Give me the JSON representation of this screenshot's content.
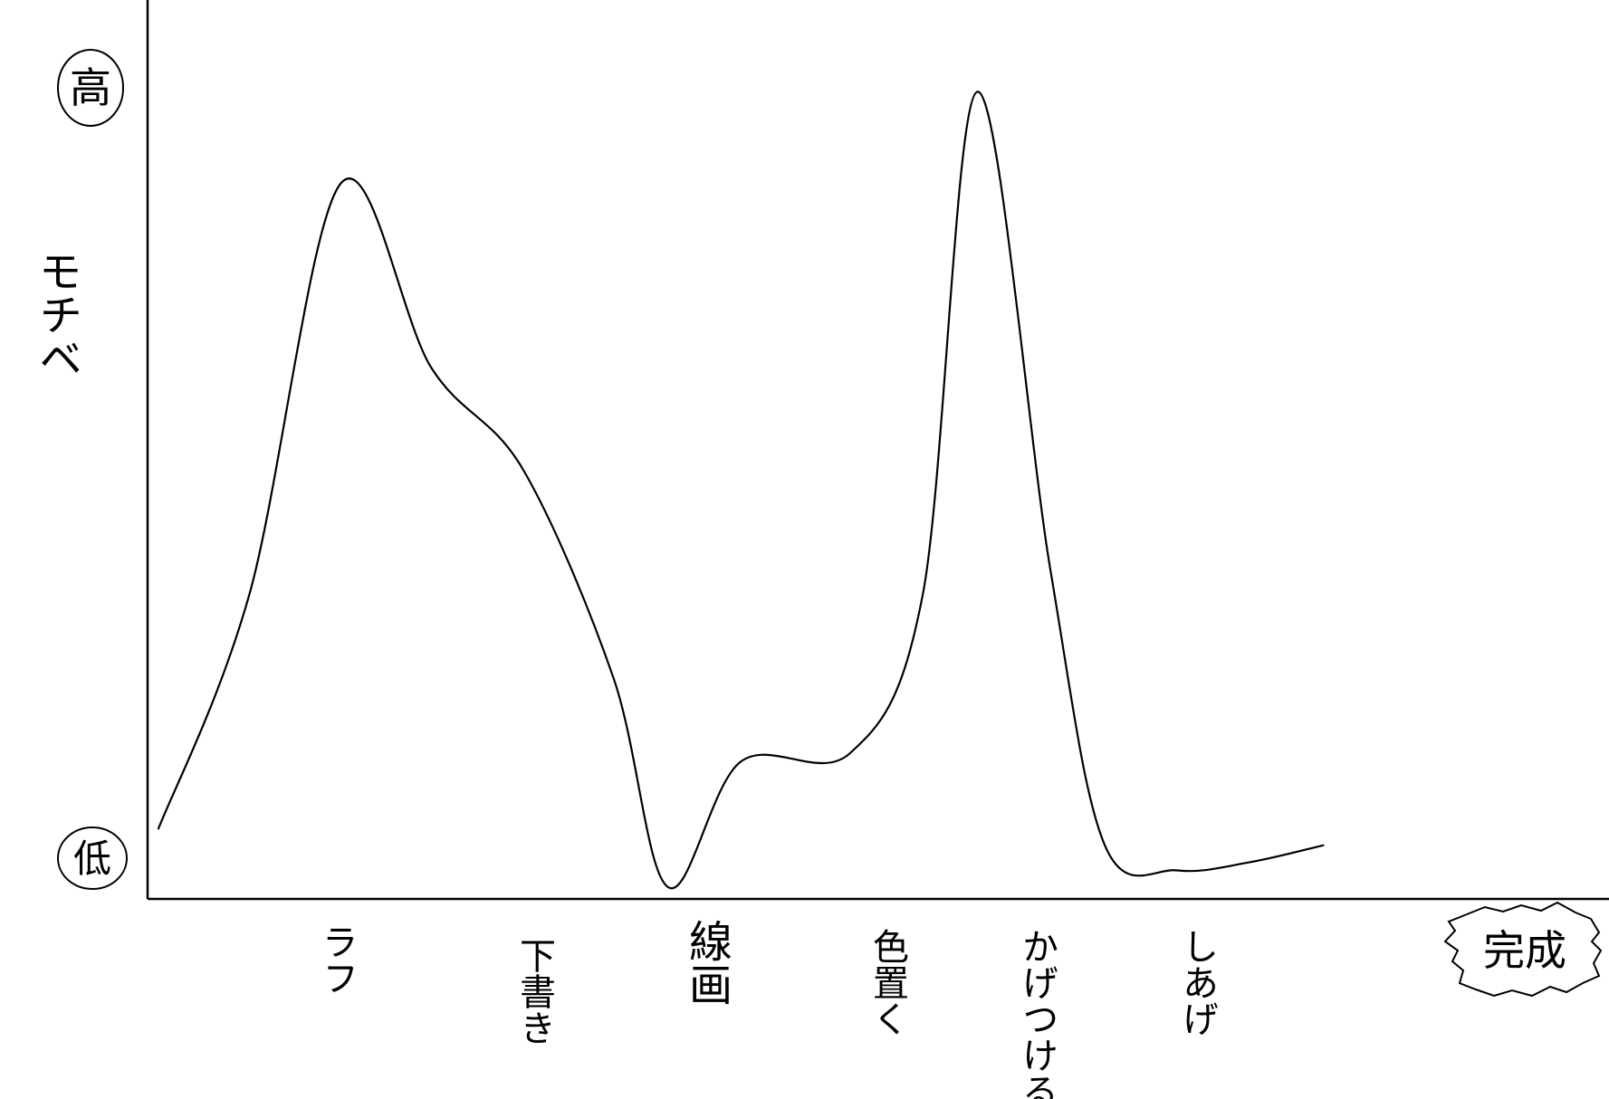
{
  "chart_data": {
    "type": "line",
    "title": "",
    "xlabel": "",
    "ylabel": "モチベ",
    "y_high_label": "高",
    "y_low_label": "低",
    "end_label": "完成",
    "ylim": [
      0,
      100
    ],
    "grid": false,
    "stages": [
      "ラフ",
      "下書き",
      "線画",
      "色置く",
      "かげつける",
      "しあげ"
    ],
    "series": [
      {
        "x": [
          0,
          0.5,
          1.0,
          1.5,
          2.0,
          2.5,
          2.8,
          3.2,
          3.8,
          4.2,
          4.5,
          4.9,
          5.2,
          5.6,
          6.0,
          6.4
        ],
        "values": [
          7,
          35,
          84,
          62,
          50,
          25,
          0,
          15,
          16,
          35,
          95,
          38,
          5,
          2,
          3,
          5
        ]
      }
    ]
  },
  "colors": {
    "line": "#000000",
    "background": "#ffffff"
  }
}
